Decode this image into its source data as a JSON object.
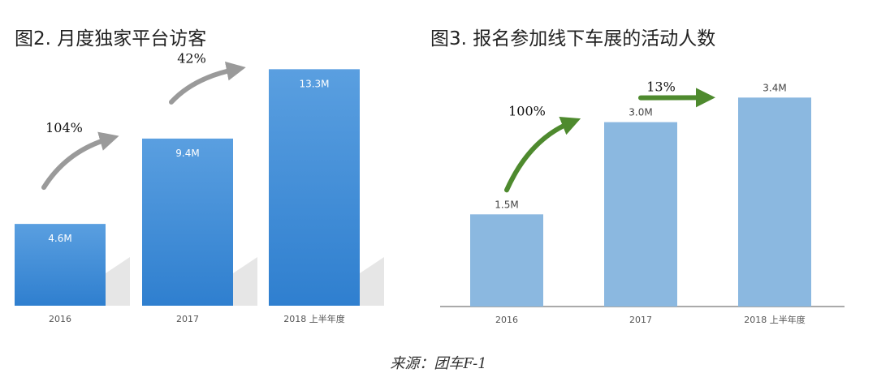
{
  "chart_data": [
    {
      "type": "bar",
      "title": "图2. 月度独家平台访客",
      "categories": [
        "2016",
        "2017",
        "2018 上半年度"
      ],
      "values": [
        4.6,
        9.4,
        13.3
      ],
      "data_labels": [
        "4.6M",
        "9.4M",
        "13.3M"
      ],
      "growth_labels": [
        "104%",
        "42%"
      ],
      "ylim": [
        0,
        14
      ],
      "grid": false,
      "bar_color": "#3a8ad6",
      "arrow_color": "#9a9a9a"
    },
    {
      "type": "bar",
      "title": "图3. 报名参加线下车展的活动人数",
      "categories": [
        "2016",
        "2017",
        "2018 上半年度"
      ],
      "values": [
        1.5,
        3.0,
        3.4
      ],
      "data_labels": [
        "1.5M",
        "3.0M",
        "3.4M"
      ],
      "growth_labels": [
        "100%",
        "13%"
      ],
      "ylim": [
        0,
        3.8
      ],
      "grid": false,
      "bar_color": "#8bb8e0",
      "arrow_color": "#4e8a2e"
    }
  ],
  "source": "来源：团车F-1"
}
